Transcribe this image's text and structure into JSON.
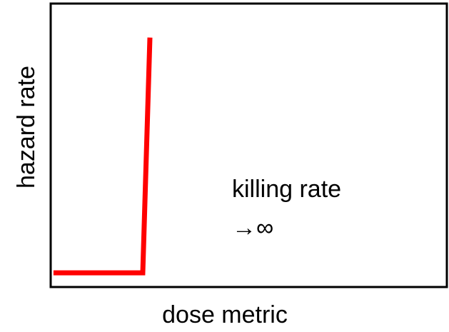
{
  "chart_data": {
    "type": "line",
    "xlabel": "dose metric",
    "ylabel": "hazard rate",
    "annotations": [
      "killing rate",
      "→∞"
    ],
    "xlim": [
      0,
      1
    ],
    "ylim": [
      0,
      1
    ],
    "series": [
      {
        "color": "#ff0000",
        "x": [
          0.007,
          0.232,
          0.25
        ],
        "values": [
          0.05,
          0.05,
          0.88
        ]
      }
    ]
  }
}
